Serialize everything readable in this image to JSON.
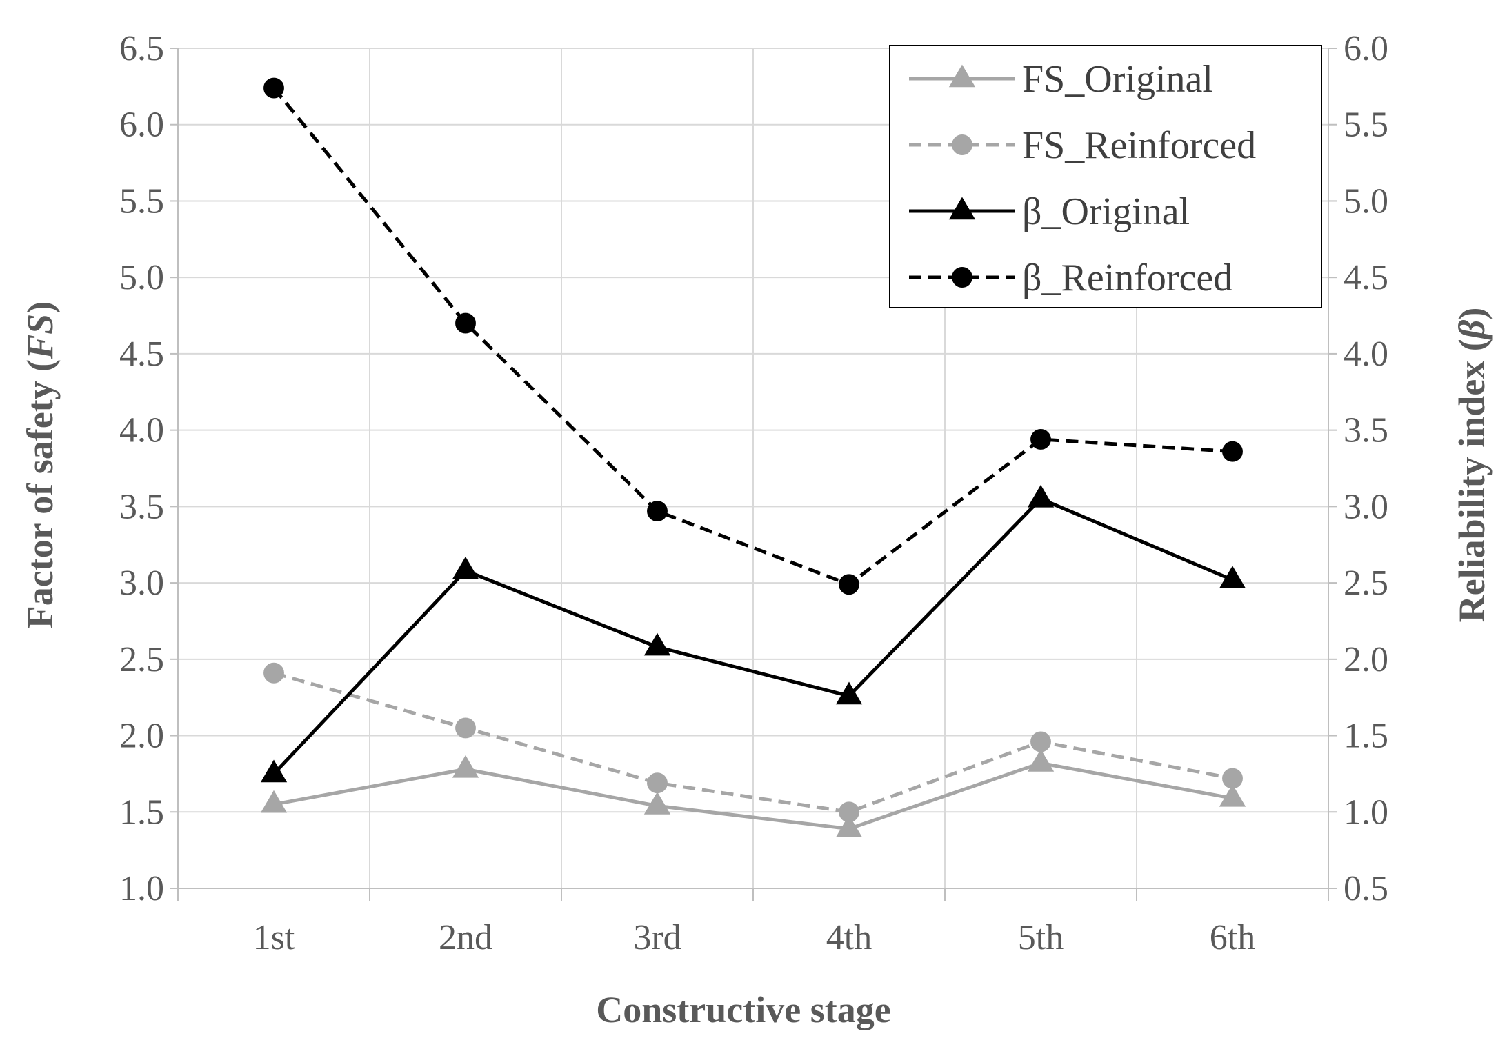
{
  "chart_data": {
    "type": "line",
    "title": "",
    "xlabel": "Constructive stage",
    "ylabel": "Factor of safety (FS)",
    "ylabel_parts": [
      "Factor of safety (",
      "FS",
      ")"
    ],
    "y2label": "Reliability index (β)",
    "y2label_parts": [
      "Reliability index (",
      "β",
      ")"
    ],
    "categories": [
      "1st",
      "2nd",
      "3rd",
      "4th",
      "5th",
      "6th"
    ],
    "ylim": [
      1.0,
      6.5
    ],
    "y2lim": [
      0.5,
      6.0
    ],
    "yticks": [
      "1.0",
      "1.5",
      "2.0",
      "2.5",
      "3.0",
      "3.5",
      "4.0",
      "4.5",
      "5.0",
      "5.5",
      "6.0",
      "6.5"
    ],
    "y2ticks": [
      "0.5",
      "1.0",
      "1.5",
      "2.0",
      "2.5",
      "3.0",
      "3.5",
      "4.0",
      "4.5",
      "5.0",
      "5.5",
      "6.0"
    ],
    "grid": true,
    "legend_position": "top-right",
    "series": [
      {
        "name": "FS_Original",
        "axis": "left",
        "values": [
          1.55,
          1.78,
          1.54,
          1.39,
          1.82,
          1.59
        ],
        "color": "#a6a6a6",
        "dash": "solid",
        "marker": "triangle"
      },
      {
        "name": "FS_Reinforced",
        "axis": "left",
        "values": [
          2.41,
          2.05,
          1.69,
          1.5,
          1.96,
          1.72
        ],
        "color": "#a6a6a6",
        "dash": "dashed",
        "marker": "circle"
      },
      {
        "name": "β_Original",
        "axis": "right",
        "values": [
          1.25,
          2.58,
          2.08,
          1.76,
          3.05,
          2.52
        ],
        "color": "#000000",
        "dash": "solid",
        "marker": "triangle"
      },
      {
        "name": "β_Reinforced",
        "axis": "right",
        "values": [
          5.74,
          4.2,
          2.97,
          2.49,
          3.44,
          3.36
        ],
        "color": "#000000",
        "dash": "dashed",
        "marker": "circle"
      }
    ]
  }
}
